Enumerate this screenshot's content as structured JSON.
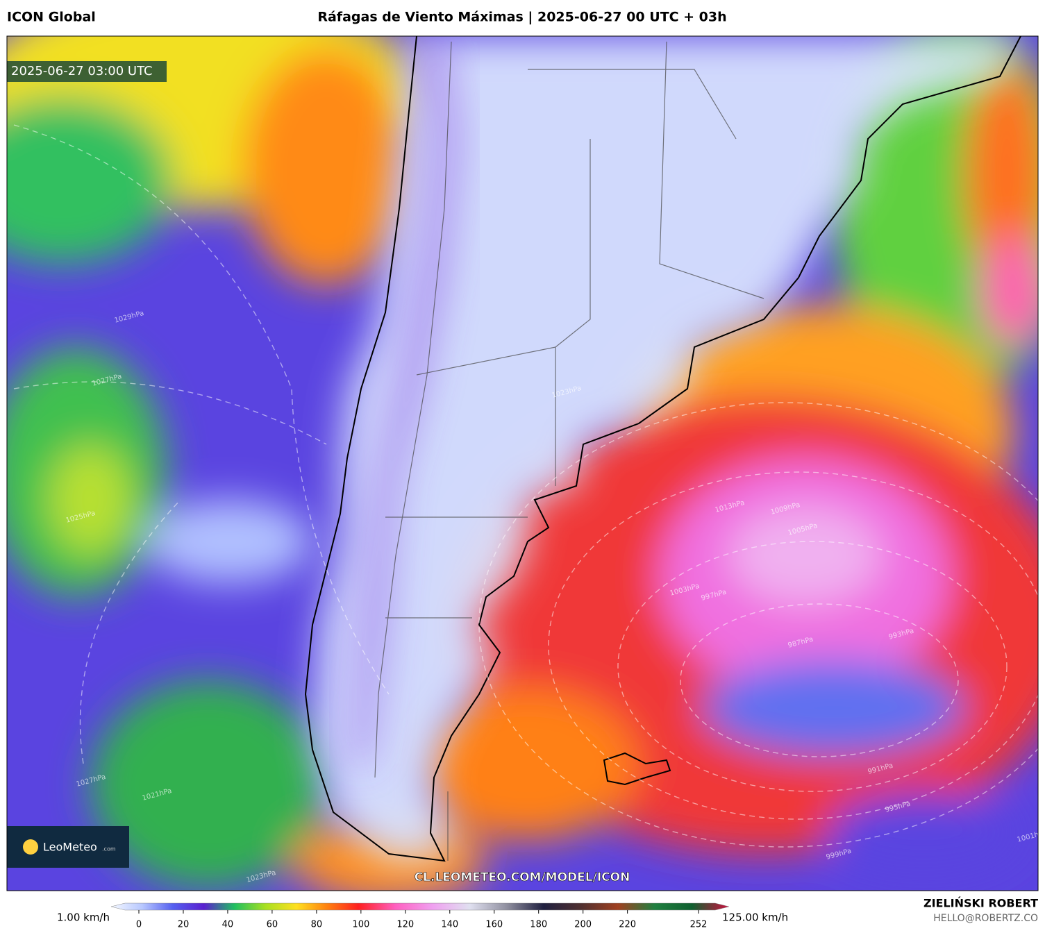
{
  "header": {
    "model": "ICON Global",
    "title": "Ráfagas de Viento Máximas | 2025-06-27 00 UTC + 03h"
  },
  "map": {
    "timestamp": "2025-06-27 03:00 UTC",
    "watermark": "CL.LEOMETEO.COM/MODEL/ICON",
    "logo": {
      "name": "LeoMeteo",
      "suffix": ".com"
    },
    "isobars": [
      "1029hPa",
      "1027hPa",
      "1025hPa",
      "1027hPa",
      "1023hPa",
      "1021hPa",
      "1013hPa",
      "1009hPa",
      "1005hPa",
      "1003hPa",
      "997hPa",
      "993hPa",
      "987hPa",
      "991hPa",
      "995hPa",
      "999hPa",
      "1001hPa",
      "1023hPa"
    ]
  },
  "colorbar": {
    "min_label": "1.00 km/h",
    "max_label": "125.00 km/h",
    "ticks": [
      0,
      20,
      40,
      60,
      80,
      100,
      120,
      140,
      160,
      180,
      200,
      220,
      252
    ]
  },
  "credits": {
    "author": "ZIELIŃSKI ROBERT",
    "email": "HELLO@ROBERTZ.CO"
  }
}
